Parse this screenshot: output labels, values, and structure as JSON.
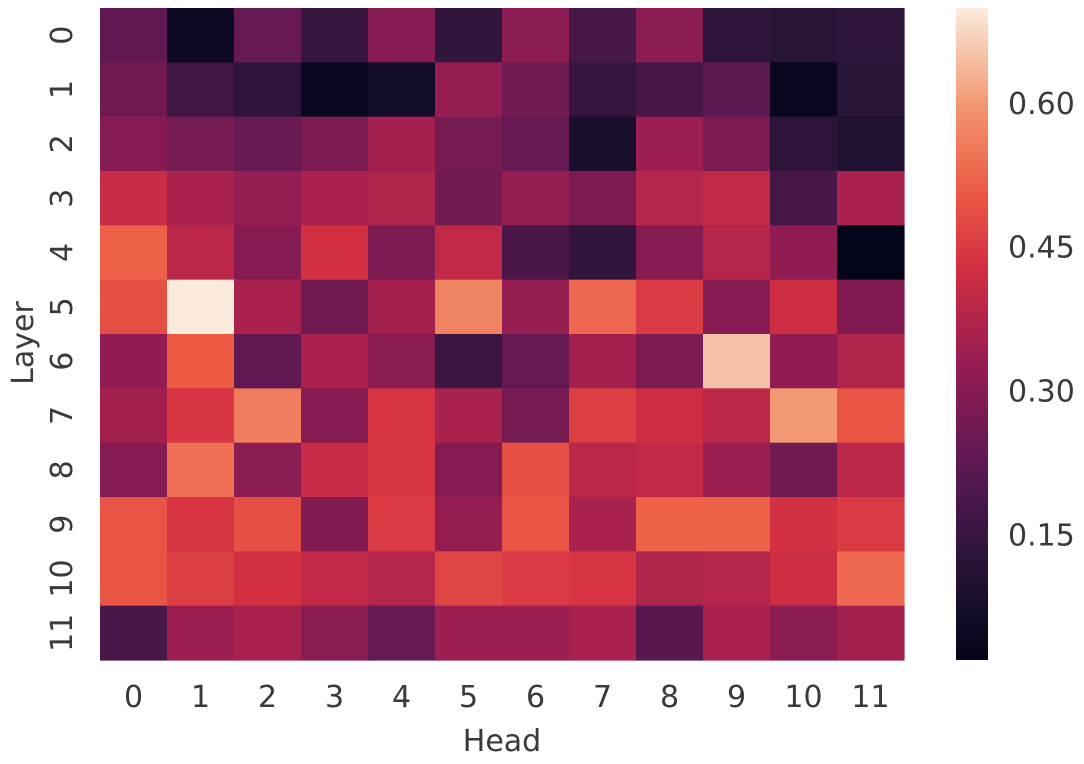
{
  "chart_data": {
    "type": "heatmap",
    "title": "",
    "xlabel": "Head",
    "ylabel": "Layer",
    "x_categories": [
      "0",
      "1",
      "2",
      "3",
      "4",
      "5",
      "6",
      "7",
      "8",
      "9",
      "10",
      "11"
    ],
    "y_categories": [
      "0",
      "1",
      "2",
      "3",
      "4",
      "5",
      "6",
      "7",
      "8",
      "9",
      "10",
      "11"
    ],
    "colorbar": {
      "vmin": 0.02,
      "vmax": 0.7,
      "ticks": [
        0.15,
        0.3,
        0.45,
        0.6
      ],
      "tick_labels": [
        "0.15",
        "0.30",
        "0.45",
        "0.60"
      ]
    },
    "colormap": "rocket",
    "values": [
      [
        0.23,
        0.05,
        0.24,
        0.15,
        0.3,
        0.14,
        0.31,
        0.18,
        0.31,
        0.13,
        0.12,
        0.13
      ],
      [
        0.26,
        0.17,
        0.13,
        0.04,
        0.07,
        0.33,
        0.26,
        0.15,
        0.18,
        0.22,
        0.04,
        0.12
      ],
      [
        0.3,
        0.27,
        0.24,
        0.28,
        0.35,
        0.27,
        0.24,
        0.08,
        0.34,
        0.28,
        0.13,
        0.1
      ],
      [
        0.41,
        0.36,
        0.33,
        0.36,
        0.37,
        0.26,
        0.33,
        0.28,
        0.38,
        0.4,
        0.18,
        0.36
      ],
      [
        0.52,
        0.39,
        0.3,
        0.43,
        0.28,
        0.4,
        0.19,
        0.14,
        0.3,
        0.38,
        0.32,
        0.02
      ],
      [
        0.49,
        0.7,
        0.36,
        0.26,
        0.35,
        0.57,
        0.33,
        0.53,
        0.45,
        0.3,
        0.42,
        0.29
      ],
      [
        0.32,
        0.51,
        0.23,
        0.36,
        0.31,
        0.16,
        0.24,
        0.35,
        0.28,
        0.65,
        0.32,
        0.37
      ],
      [
        0.35,
        0.44,
        0.56,
        0.3,
        0.44,
        0.36,
        0.27,
        0.46,
        0.42,
        0.39,
        0.6,
        0.5
      ],
      [
        0.3,
        0.54,
        0.31,
        0.41,
        0.44,
        0.3,
        0.49,
        0.39,
        0.4,
        0.34,
        0.26,
        0.39
      ],
      [
        0.5,
        0.44,
        0.49,
        0.29,
        0.45,
        0.33,
        0.5,
        0.36,
        0.52,
        0.52,
        0.43,
        0.45
      ],
      [
        0.5,
        0.46,
        0.43,
        0.4,
        0.38,
        0.47,
        0.45,
        0.44,
        0.37,
        0.38,
        0.42,
        0.53
      ],
      [
        0.18,
        0.34,
        0.36,
        0.31,
        0.24,
        0.34,
        0.34,
        0.36,
        0.21,
        0.36,
        0.31,
        0.35
      ]
    ]
  }
}
